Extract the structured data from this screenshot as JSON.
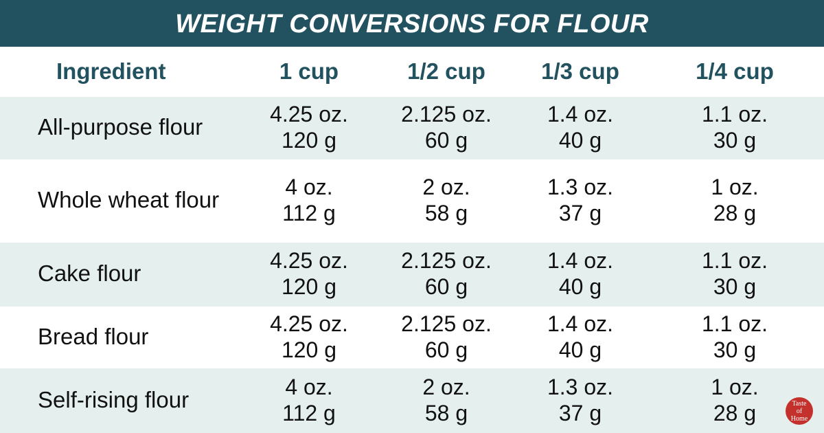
{
  "title": "WEIGHT CONVERSIONS FOR FLOUR",
  "table": {
    "header": [
      "Ingredient",
      "1 cup",
      "1/2 cup",
      "1/3 cup",
      "1/4 cup"
    ],
    "rows": [
      {
        "name": "All-purpose flour",
        "cells": [
          [
            "4.25 oz.",
            "120 g"
          ],
          [
            "2.125 oz.",
            "60 g"
          ],
          [
            "1.4 oz.",
            "40 g"
          ],
          [
            "1.1 oz.",
            "30 g"
          ]
        ]
      },
      {
        "name": "Whole wheat flour",
        "cells": [
          [
            "4 oz.",
            "112 g"
          ],
          [
            "2 oz.",
            "58 g"
          ],
          [
            "1.3 oz.",
            "37 g"
          ],
          [
            "1 oz.",
            "28 g"
          ]
        ]
      },
      {
        "name": "Cake flour",
        "cells": [
          [
            "4.25 oz.",
            "120 g"
          ],
          [
            "2.125 oz.",
            "60 g"
          ],
          [
            "1.4 oz.",
            "40 g"
          ],
          [
            "1.1 oz.",
            "30 g"
          ]
        ]
      },
      {
        "name": "Bread flour",
        "cells": [
          [
            "4.25 oz.",
            "120 g"
          ],
          [
            "2.125 oz.",
            "60 g"
          ],
          [
            "1.4 oz.",
            "40 g"
          ],
          [
            "1.1 oz.",
            "30 g"
          ]
        ]
      },
      {
        "name": "Self-rising flour",
        "cells": [
          [
            "4 oz.",
            "112 g"
          ],
          [
            "2 oz.",
            "58 g"
          ],
          [
            "1.3 oz.",
            "37 g"
          ],
          [
            "1 oz.",
            "28 g"
          ]
        ]
      }
    ]
  },
  "logo": [
    "Taste",
    "of",
    "Home"
  ]
}
